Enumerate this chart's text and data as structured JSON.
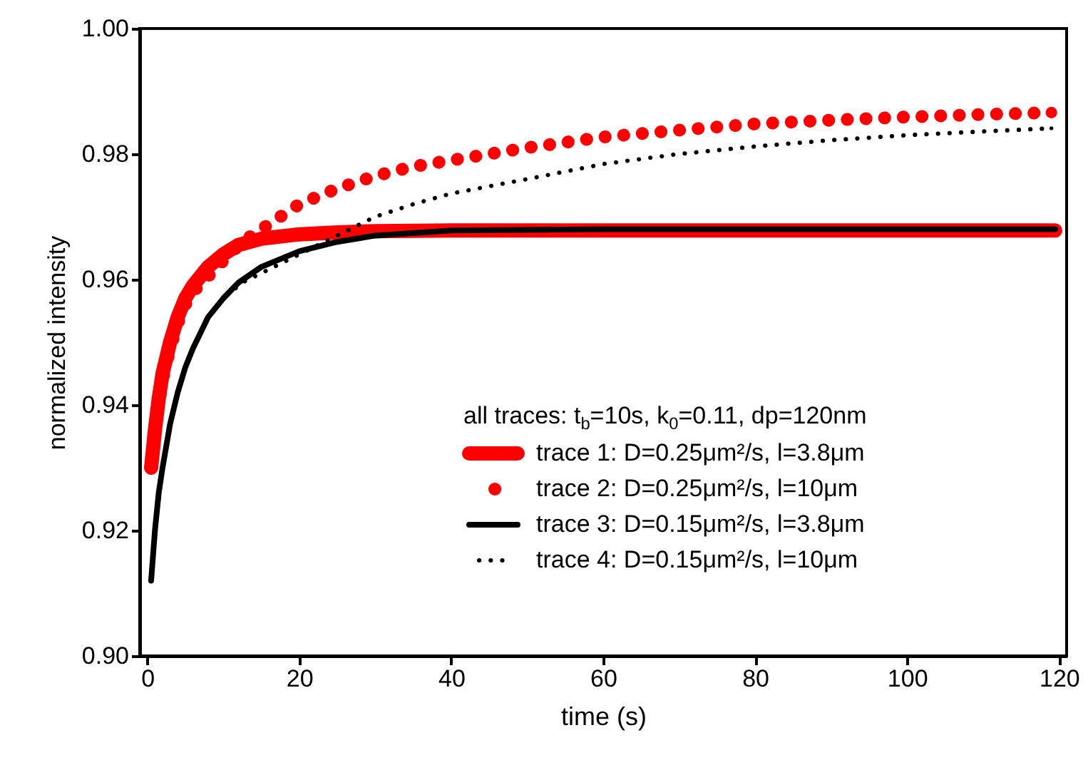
{
  "chart_data": {
    "type": "line",
    "xlabel": "time (s)",
    "ylabel": "normalized intensity",
    "legend_title": "all traces: t$_{b}$=10s, k$_{0}$=0.11, dp=120nm",
    "legend": "bottom right",
    "xlim": [
      -1,
      121
    ],
    "xticks": [
      0,
      20,
      40,
      60,
      80,
      100,
      120
    ],
    "ylim": [
      0.9,
      1.0
    ],
    "yticks": [
      {
        "value": 0.9,
        "label": "0.90"
      },
      {
        "value": 0.92,
        "label": "0.92"
      },
      {
        "value": 0.94,
        "label": "0.94"
      },
      {
        "value": 0.96,
        "label": "0.96"
      },
      {
        "value": 0.98,
        "label": "0.98"
      },
      {
        "value": 1.0,
        "label": "1.00"
      }
    ],
    "grid": false,
    "series": [
      {
        "name": "trace 1: D=0.25μm²/s, l=3.8μm",
        "color": "#ff0000",
        "line_style": "solid",
        "x": [
          0.5,
          1,
          1.5,
          2,
          3,
          4,
          5,
          6,
          8,
          10,
          12,
          15,
          20,
          25,
          30,
          40,
          60,
          80,
          100,
          119.5
        ],
        "values": [
          0.93,
          0.936,
          0.941,
          0.945,
          0.95,
          0.954,
          0.957,
          0.959,
          0.962,
          0.964,
          0.9655,
          0.9665,
          0.9672,
          0.9675,
          0.9677,
          0.9678,
          0.9678,
          0.9678,
          0.9678,
          0.9678
        ]
      },
      {
        "name": "trace 2: D=0.25μm²/s, l=10μm",
        "color": "#ff0000",
        "line_style": "dotted",
        "x": [
          0.5,
          1,
          2,
          3,
          4,
          5,
          6,
          8,
          10,
          12.5,
          15,
          17.5,
          20,
          25,
          30,
          35,
          40,
          45,
          50,
          60,
          70,
          80,
          90,
          100,
          110,
          119
        ],
        "values": [
          0.93,
          0.936,
          0.944,
          0.949,
          0.953,
          0.956,
          0.958,
          0.9605,
          0.963,
          0.966,
          0.968,
          0.97,
          0.972,
          0.9745,
          0.9765,
          0.978,
          0.979,
          0.98,
          0.981,
          0.9827,
          0.9838,
          0.9848,
          0.9854,
          0.9859,
          0.9863,
          0.9866
        ]
      },
      {
        "name": "trace 3: D=0.15μm²/s, l=3.8μm",
        "color": "#000000",
        "line_style": "solid",
        "x": [
          0.5,
          1,
          1.5,
          2,
          3,
          4,
          5,
          6,
          8,
          10,
          12,
          15,
          20,
          25,
          30,
          40,
          60,
          80,
          100,
          119.5
        ],
        "values": [
          0.912,
          0.92,
          0.926,
          0.93,
          0.937,
          0.942,
          0.946,
          0.949,
          0.954,
          0.957,
          0.9595,
          0.962,
          0.9645,
          0.966,
          0.967,
          0.9678,
          0.968,
          0.968,
          0.968,
          0.968
        ]
      },
      {
        "name": "trace 4: D=0.15μm²/s, l=10μm",
        "color": "#000000",
        "line_style": "dotted",
        "x": [
          0.5,
          1,
          2,
          3,
          4,
          5,
          6,
          8,
          10,
          12.5,
          15,
          17.5,
          20,
          25,
          30,
          35,
          40,
          50,
          60,
          70,
          80,
          90,
          100,
          110,
          119
        ],
        "values": [
          0.912,
          0.92,
          0.93,
          0.937,
          0.942,
          0.946,
          0.949,
          0.954,
          0.957,
          0.9595,
          0.961,
          0.9625,
          0.964,
          0.967,
          0.97,
          0.972,
          0.9737,
          0.976,
          0.9784,
          0.98,
          0.9812,
          0.9822,
          0.983,
          0.9836,
          0.9841
        ]
      }
    ]
  }
}
